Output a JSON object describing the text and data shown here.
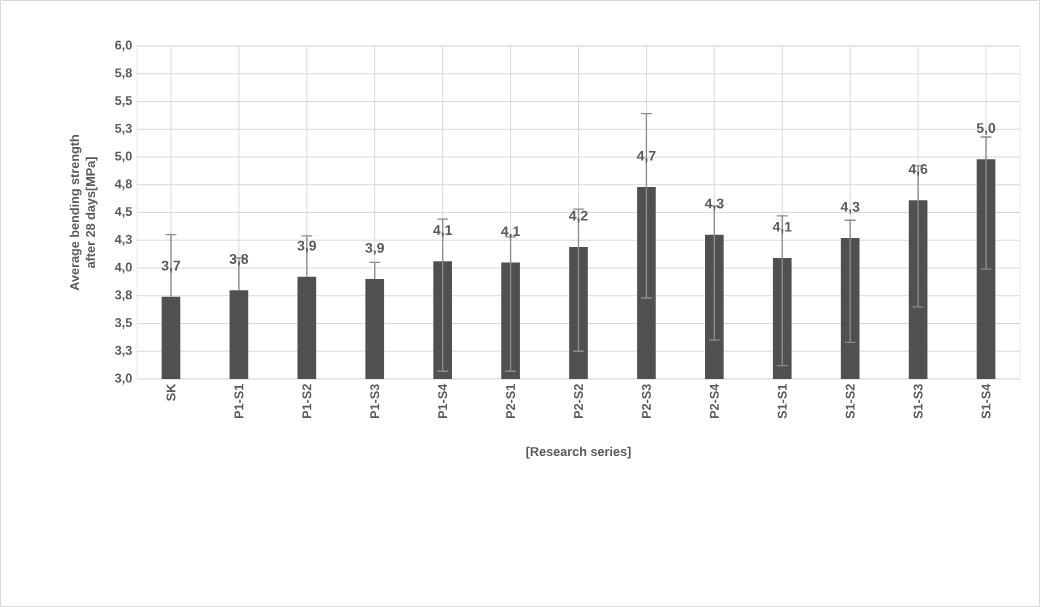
{
  "chart_data": {
    "type": "bar",
    "xlabel": "[Research series]",
    "ylabel": "Average bending strength\nafter 28 days[MPa]",
    "categories": [
      "SK",
      "P1-S1",
      "P1-S2",
      "P1-S3",
      "P1-S4",
      "P2-S1",
      "P2-S2",
      "P2-S3",
      "P2-S4",
      "S1-S1",
      "S1-S2",
      "S1-S3",
      "S1-S4"
    ],
    "values": [
      3.74,
      3.8,
      3.92,
      3.9,
      4.06,
      4.05,
      4.19,
      4.73,
      4.3,
      4.09,
      4.27,
      4.61,
      4.98
    ],
    "errors": [
      [
        3.74,
        4.3
      ],
      [
        3.8,
        4.09
      ],
      [
        3.92,
        4.29
      ],
      [
        3.9,
        4.05
      ],
      [
        3.07,
        4.44
      ],
      [
        3.07,
        4.28
      ],
      [
        3.25,
        4.53
      ],
      [
        3.73,
        5.39
      ],
      [
        3.35,
        4.56
      ],
      [
        3.12,
        4.47
      ],
      [
        3.33,
        4.43
      ],
      [
        3.65,
        4.92
      ],
      [
        3.99,
        5.18
      ]
    ],
    "value_labels": [
      "3,7",
      "3,8",
      "3,9",
      "3,9",
      "4,1",
      "4,1",
      "4,2",
      "4,7",
      "4,3",
      "4,1",
      "4,3",
      "4,6",
      "5,0"
    ],
    "color": "#505050",
    "ylim": [
      3.0,
      6.0
    ],
    "yticks": [
      {
        "value": 3.0,
        "label": "3,0"
      },
      {
        "value": 3.25,
        "label": "3,3"
      },
      {
        "value": 3.5,
        "label": "3,5"
      },
      {
        "value": 3.75,
        "label": "3,8"
      },
      {
        "value": 4.0,
        "label": "4,0"
      },
      {
        "value": 4.25,
        "label": "4,3"
      },
      {
        "value": 4.5,
        "label": "4,5"
      },
      {
        "value": 4.75,
        "label": "4,8"
      },
      {
        "value": 5.0,
        "label": "5,0"
      },
      {
        "value": 5.25,
        "label": "5,3"
      },
      {
        "value": 5.5,
        "label": "5,5"
      },
      {
        "value": 5.75,
        "label": "5,8"
      },
      {
        "value": 6.0,
        "label": "6,0"
      }
    ],
    "grid": true
  }
}
